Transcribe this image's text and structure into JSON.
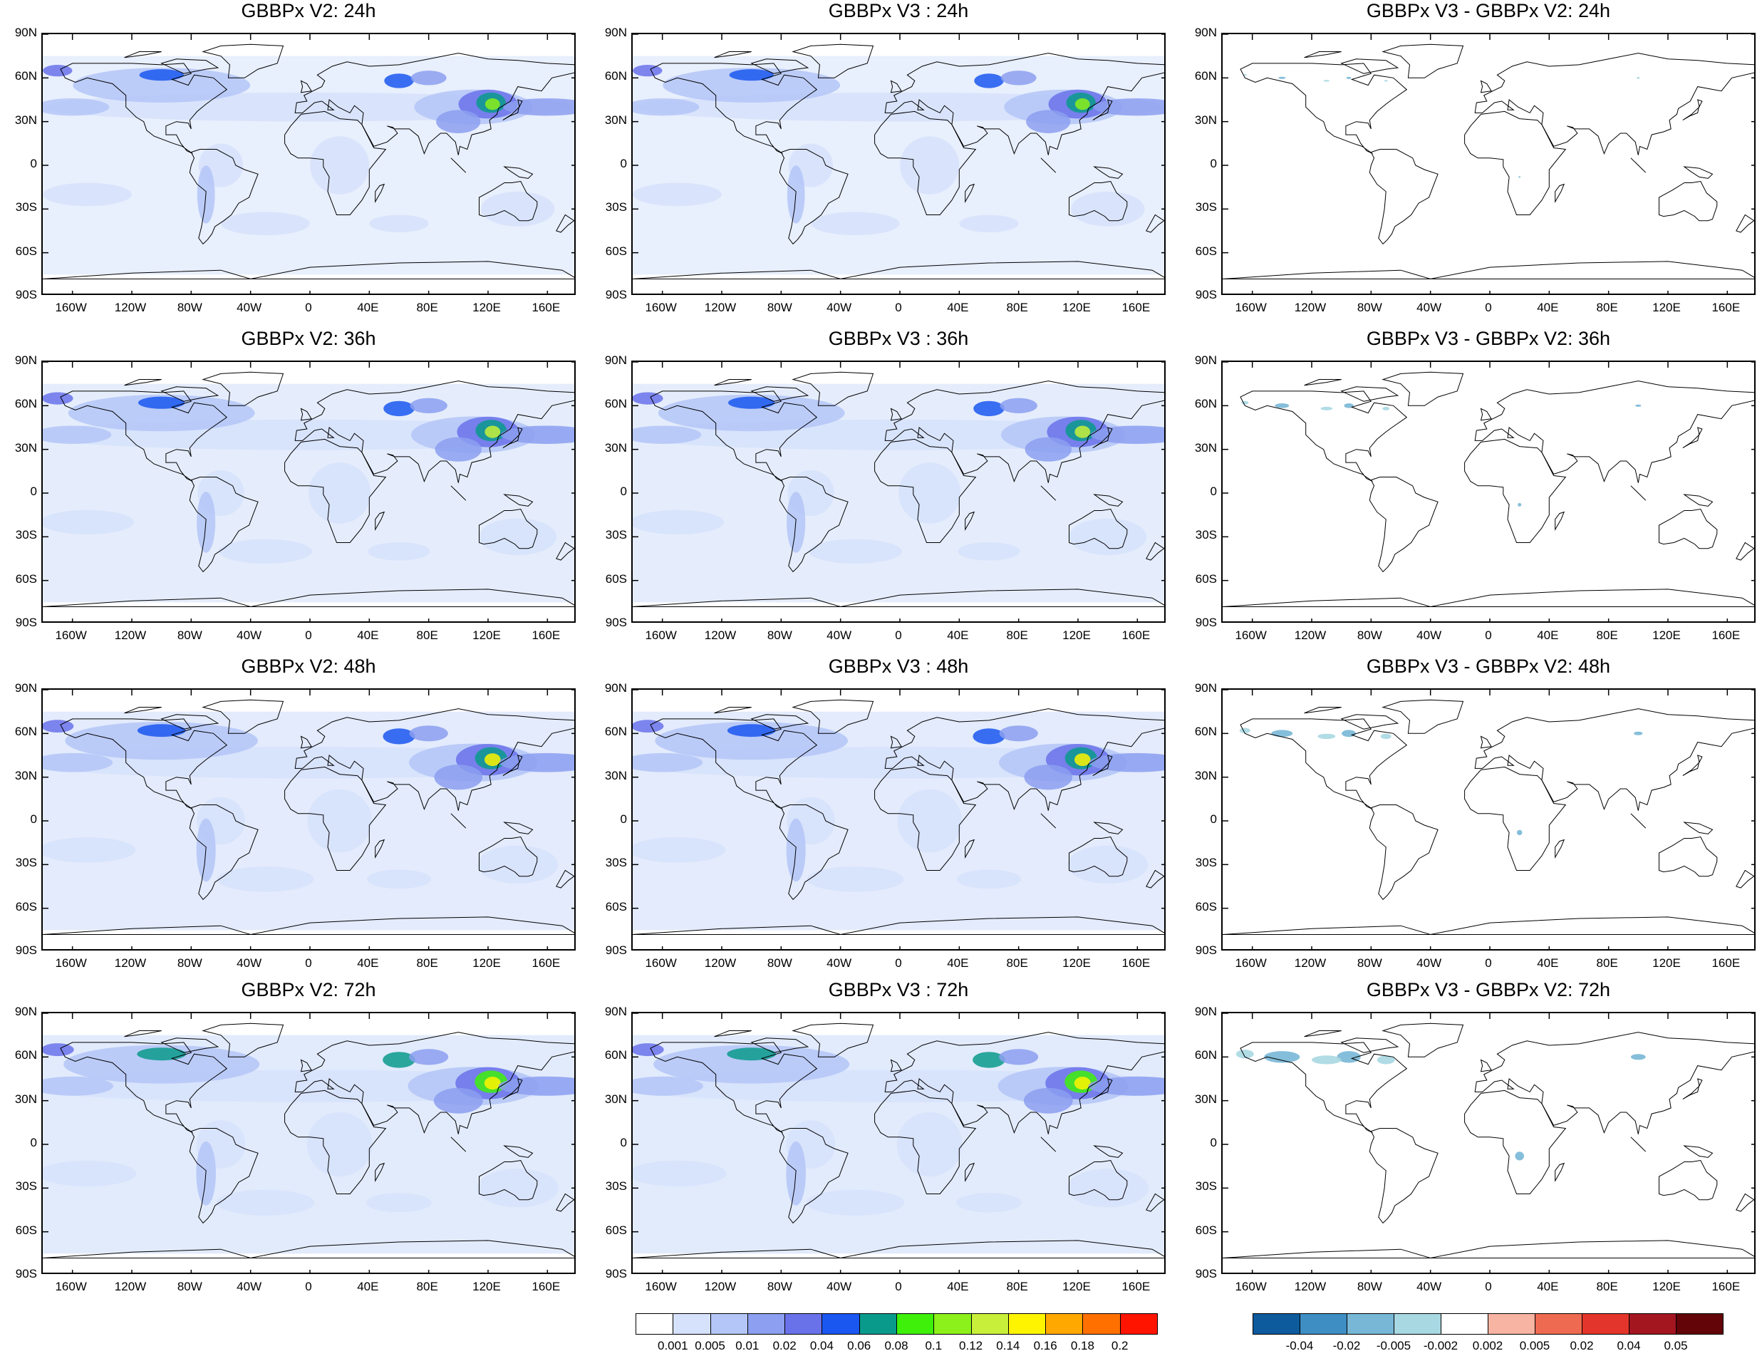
{
  "figure": {
    "panels": [
      {
        "title": "GBBPx V2: 24h",
        "kind": "concentration",
        "hour": 24,
        "intensity": 0.7
      },
      {
        "title": "GBBPx V3 : 24h",
        "kind": "concentration",
        "hour": 24,
        "intensity": 0.7
      },
      {
        "title": "GBBPx V3 - GBBPx V2: 24h",
        "kind": "difference",
        "hour": 24,
        "intensity": 0.2
      },
      {
        "title": "GBBPx V2: 36h",
        "kind": "concentration",
        "hour": 36,
        "intensity": 0.85
      },
      {
        "title": "GBBPx V3 : 36h",
        "kind": "concentration",
        "hour": 36,
        "intensity": 0.85
      },
      {
        "title": "GBBPx V3 - GBBPx V2: 36h",
        "kind": "difference",
        "hour": 36,
        "intensity": 0.4
      },
      {
        "title": "GBBPx V2: 48h",
        "kind": "concentration",
        "hour": 48,
        "intensity": 0.95
      },
      {
        "title": "GBBPx V3 : 48h",
        "kind": "concentration",
        "hour": 48,
        "intensity": 0.95
      },
      {
        "title": "GBBPx V3 - GBBPx V2: 48h",
        "kind": "difference",
        "hour": 48,
        "intensity": 0.6
      },
      {
        "title": "GBBPx V2: 72h",
        "kind": "concentration",
        "hour": 72,
        "intensity": 1.0
      },
      {
        "title": "GBBPx V3 : 72h",
        "kind": "concentration",
        "hour": 72,
        "intensity": 1.0
      },
      {
        "title": "GBBPx V3 - GBBPx V2: 72h",
        "kind": "difference",
        "hour": 72,
        "intensity": 1.0
      }
    ],
    "lat_ticks": [
      "90N",
      "60N",
      "30N",
      "0",
      "30S",
      "60S",
      "90S"
    ],
    "lon_ticks": [
      "160W",
      "120W",
      "80W",
      "40W",
      "0",
      "40E",
      "80E",
      "120E",
      "160E"
    ],
    "lon_tick_values": [
      -160,
      -120,
      -80,
      -40,
      0,
      40,
      80,
      120,
      160
    ],
    "lat_tick_values": [
      90,
      60,
      30,
      0,
      -30,
      -60,
      -90
    ]
  },
  "colorbars": {
    "concentration": {
      "labels": [
        "0.001",
        "0.005",
        "0.01",
        "0.02",
        "0.04",
        "0.06",
        "0.08",
        "0.1",
        "0.12",
        "0.14",
        "0.16",
        "0.18",
        "0.2"
      ],
      "colors": [
        "#ffffff",
        "#d6e2fb",
        "#b4c6f7",
        "#8c9ff0",
        "#6a72ea",
        "#1a57f0",
        "#0a9a8c",
        "#3ef00a",
        "#8cf01a",
        "#c8f03a",
        "#fff400",
        "#ffa800",
        "#ff7000",
        "#ff1400"
      ]
    },
    "difference": {
      "labels": [
        "-0.04",
        "-0.02",
        "-0.005",
        "-0.002",
        "0.002",
        "0.005",
        "0.02",
        "0.04",
        "0.05"
      ],
      "colors": [
        "#0d5a9c",
        "#3e8ec4",
        "#78b7d6",
        "#a8d8e2",
        "#ffffff",
        "#f8b4a2",
        "#ee6a50",
        "#e3352b",
        "#a31620",
        "#620408"
      ]
    }
  }
}
